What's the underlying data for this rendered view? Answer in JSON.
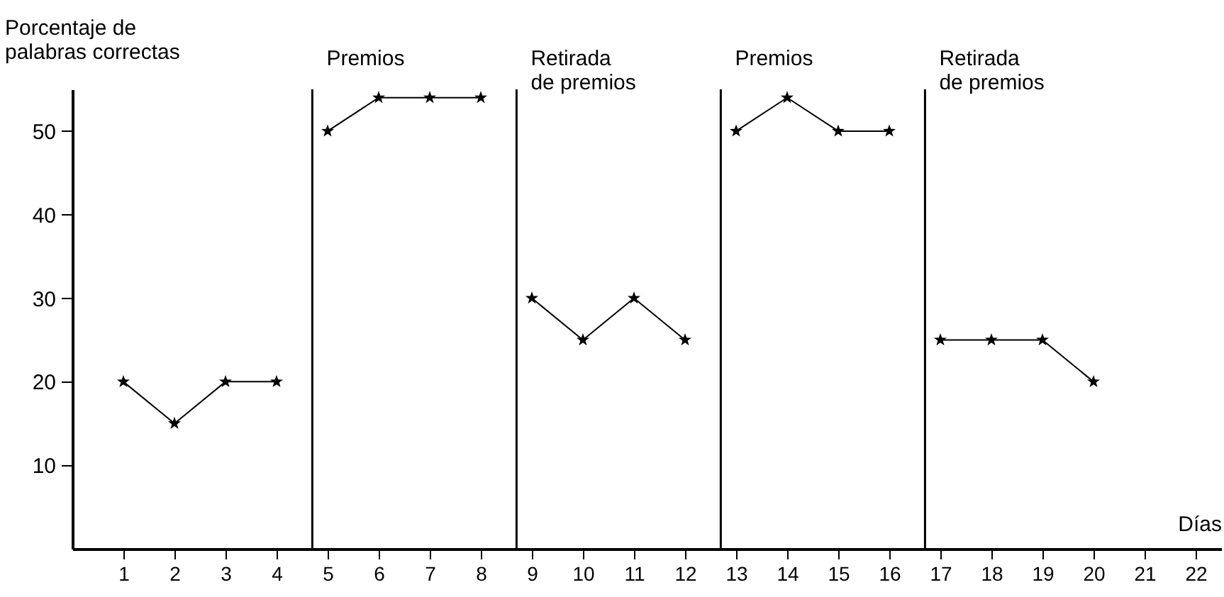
{
  "chart_data": {
    "type": "line",
    "ylabel": "Porcentaje de\npalabras correctas",
    "xlabel": "Días",
    "xlim": [
      0,
      22.5
    ],
    "xticks": [
      1,
      2,
      3,
      4,
      5,
      6,
      7,
      8,
      9,
      10,
      11,
      12,
      13,
      14,
      15,
      16,
      17,
      18,
      19,
      20,
      21,
      22
    ],
    "ylim": [
      0,
      55
    ],
    "yticks": [
      10,
      20,
      30,
      40,
      50
    ],
    "grid": false,
    "marker": "star",
    "line_style": "solid",
    "series": [
      {
        "color": "#000000",
        "x": [
          1,
          2,
          3,
          4
        ],
        "values": [
          20,
          15,
          20,
          20
        ]
      },
      {
        "color": "#000000",
        "x": [
          5,
          6,
          7,
          8
        ],
        "values": [
          50,
          54,
          54,
          54
        ]
      },
      {
        "color": "#000000",
        "x": [
          9,
          10,
          11,
          12
        ],
        "values": [
          30,
          25,
          30,
          25
        ]
      },
      {
        "color": "#000000",
        "x": [
          13,
          14,
          15,
          16
        ],
        "values": [
          50,
          54,
          50,
          50
        ]
      },
      {
        "color": "#000000",
        "x": [
          17,
          18,
          19,
          20
        ],
        "values": [
          25,
          25,
          25,
          20
        ]
      }
    ],
    "ref_lines": [
      {
        "axis": "x",
        "value": 4.7,
        "label": "Premios",
        "color": "#000000"
      },
      {
        "axis": "x",
        "value": 8.7,
        "label": "Retirada\nde premios",
        "color": "#000000"
      },
      {
        "axis": "x",
        "value": 12.7,
        "label": "Premios",
        "color": "#000000"
      },
      {
        "axis": "x",
        "value": 16.7,
        "label": "Retirada\nde premios",
        "color": "#000000"
      }
    ]
  }
}
